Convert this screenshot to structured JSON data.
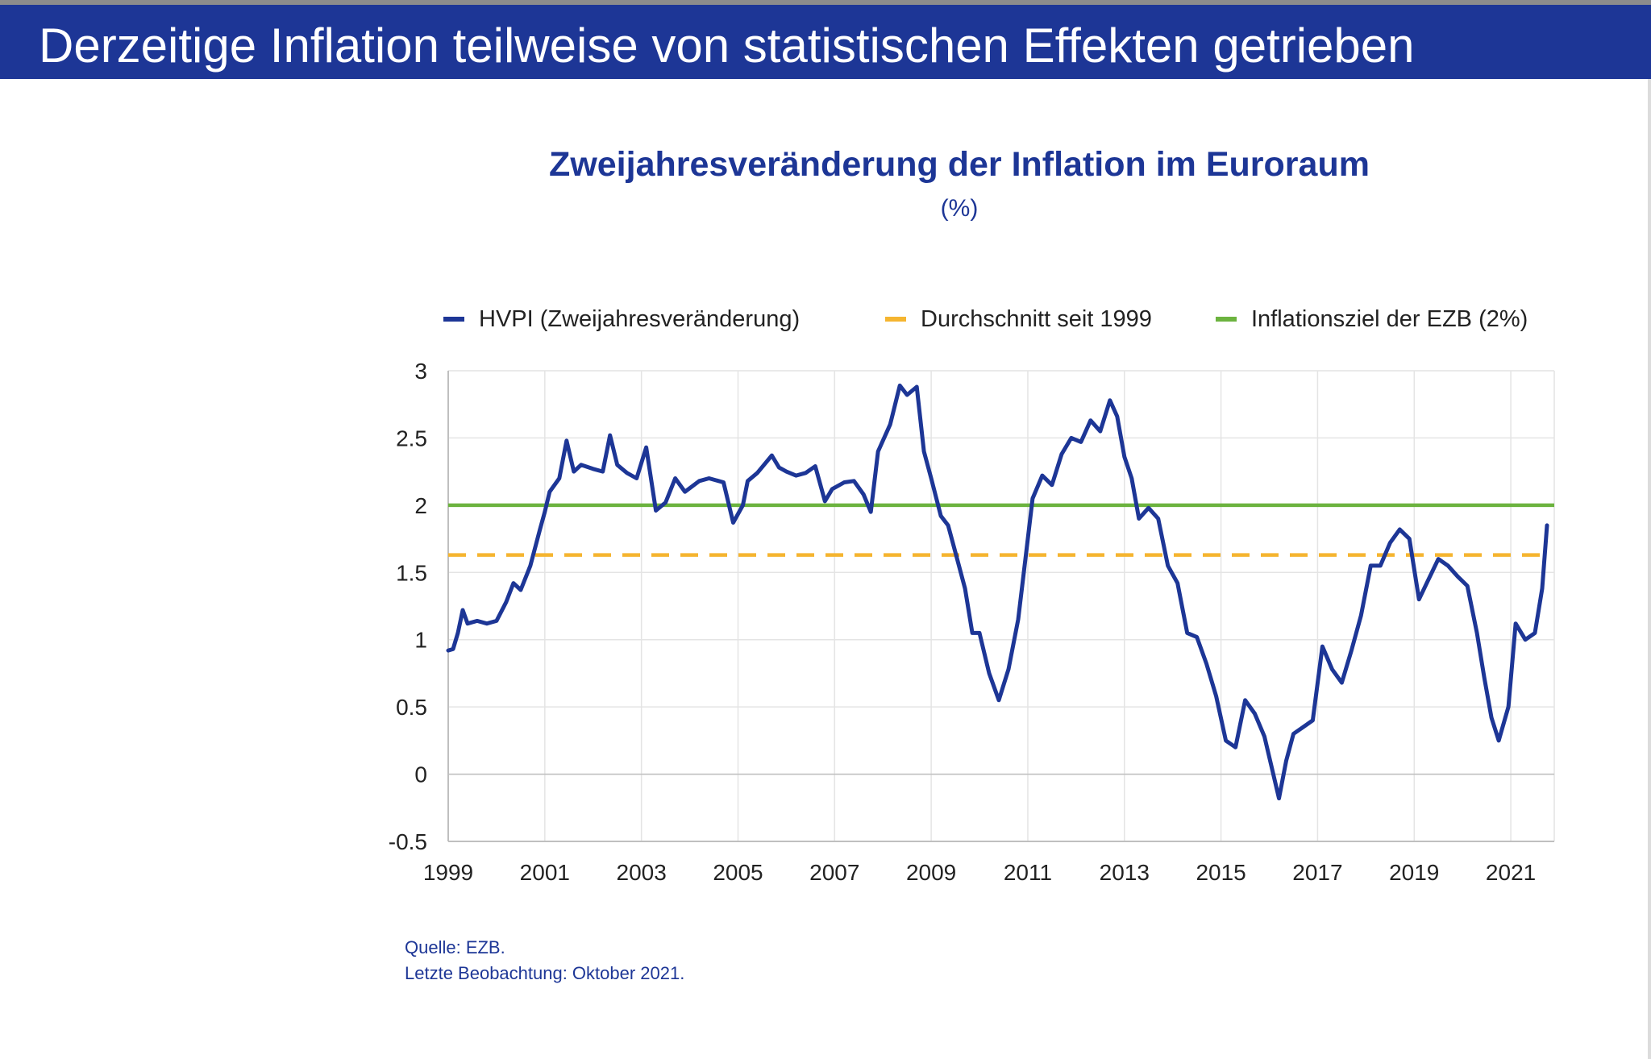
{
  "slide": {
    "title": "Derzeitige Inflation teilweise von statistischen Effekten getrieben"
  },
  "colors": {
    "banner": "#1d3696",
    "hvpi": "#1d3696",
    "average": "#f5b530",
    "target": "#6cb33f"
  },
  "source": {
    "line1": "Quelle: EZB.",
    "line2": "Letzte Beobachtung: Oktober 2021."
  },
  "chart_data": {
    "type": "line",
    "title": "Zweijahresveränderung der Inflation im Euroraum",
    "subtitle": "(%)",
    "xlabel": "",
    "ylabel": "",
    "ylim": [
      -0.5,
      3
    ],
    "xlim": [
      1999,
      2021.9
    ],
    "y_ticks": [
      "3",
      "2.5",
      "2",
      "1.5",
      "1",
      "0.5",
      "0",
      "-0.5"
    ],
    "y_tick_values": [
      3,
      2.5,
      2,
      1.5,
      1,
      0.5,
      0,
      -0.5
    ],
    "x_ticks": [
      "1999",
      "2001",
      "2003",
      "2005",
      "2007",
      "2009",
      "2011",
      "2013",
      "2015",
      "2017",
      "2019",
      "2021"
    ],
    "x_tick_values": [
      1999,
      2001,
      2003,
      2005,
      2007,
      2009,
      2011,
      2013,
      2015,
      2017,
      2019,
      2021
    ],
    "grid": true,
    "legend_position": "top",
    "series": [
      {
        "name": "HVPI (Zweijahresveränderung)",
        "style": "solid",
        "x": [
          1999.0,
          1999.1,
          1999.2,
          1999.3,
          1999.4,
          1999.6,
          1999.8,
          2000.0,
          2000.2,
          2000.35,
          2000.5,
          2000.7,
          2000.9,
          2001.0,
          2001.1,
          2001.3,
          2001.45,
          2001.6,
          2001.75,
          2002.0,
          2002.2,
          2002.35,
          2002.5,
          2002.7,
          2002.9,
          2003.1,
          2003.3,
          2003.5,
          2003.7,
          2003.9,
          2004.2,
          2004.4,
          2004.7,
          2004.9,
          2005.1,
          2005.2,
          2005.4,
          2005.7,
          2005.85,
          2006.0,
          2006.2,
          2006.4,
          2006.6,
          2006.8,
          2006.95,
          2007.2,
          2007.4,
          2007.6,
          2007.75,
          2007.9,
          2008.15,
          2008.35,
          2008.5,
          2008.7,
          2008.85,
          2009.0,
          2009.2,
          2009.35,
          2009.5,
          2009.7,
          2009.85,
          2010.0,
          2010.2,
          2010.4,
          2010.6,
          2010.8,
          2010.95,
          2011.1,
          2011.3,
          2011.5,
          2011.7,
          2011.9,
          2012.1,
          2012.3,
          2012.5,
          2012.7,
          2012.85,
          2013.0,
          2013.15,
          2013.3,
          2013.5,
          2013.7,
          2013.9,
          2014.1,
          2014.3,
          2014.5,
          2014.7,
          2014.9,
          2015.1,
          2015.3,
          2015.5,
          2015.7,
          2015.9,
          2016.05,
          2016.2,
          2016.35,
          2016.5,
          2016.7,
          2016.9,
          2017.1,
          2017.3,
          2017.5,
          2017.7,
          2017.9,
          2018.1,
          2018.3,
          2018.5,
          2018.7,
          2018.9,
          2019.1,
          2019.3,
          2019.5,
          2019.7,
          2019.9,
          2020.1,
          2020.3,
          2020.45,
          2020.6,
          2020.75,
          2020.95,
          2021.1,
          2021.3,
          2021.5,
          2021.65,
          2021.75
        ],
        "values": [
          0.92,
          0.93,
          1.05,
          1.22,
          1.12,
          1.14,
          1.12,
          1.14,
          1.28,
          1.42,
          1.37,
          1.55,
          1.82,
          1.95,
          2.1,
          2.2,
          2.48,
          2.25,
          2.3,
          2.27,
          2.25,
          2.52,
          2.3,
          2.24,
          2.2,
          2.43,
          1.96,
          2.02,
          2.2,
          2.1,
          2.18,
          2.2,
          2.17,
          1.87,
          2.0,
          2.18,
          2.24,
          2.37,
          2.28,
          2.25,
          2.22,
          2.24,
          2.29,
          2.03,
          2.12,
          2.17,
          2.18,
          2.08,
          1.95,
          2.4,
          2.6,
          2.89,
          2.82,
          2.88,
          2.4,
          2.2,
          1.92,
          1.85,
          1.65,
          1.38,
          1.05,
          1.05,
          0.75,
          0.55,
          0.78,
          1.15,
          1.6,
          2.05,
          2.22,
          2.15,
          2.38,
          2.5,
          2.47,
          2.63,
          2.55,
          2.78,
          2.66,
          2.36,
          2.2,
          1.9,
          1.98,
          1.9,
          1.55,
          1.42,
          1.05,
          1.02,
          0.82,
          0.58,
          0.25,
          0.2,
          0.55,
          0.45,
          0.28,
          0.05,
          -0.18,
          0.1,
          0.3,
          0.35,
          0.4,
          0.95,
          0.78,
          0.68,
          0.92,
          1.18,
          1.55,
          1.55,
          1.72,
          1.82,
          1.75,
          1.3,
          1.45,
          1.6,
          1.55,
          1.47,
          1.4,
          1.05,
          0.72,
          0.42,
          0.25,
          0.5,
          1.12,
          1.0,
          1.05,
          1.38,
          1.85
        ]
      },
      {
        "name": "Durchschnitt seit 1999",
        "style": "dashed",
        "x": [
          1999.0,
          2021.75
        ],
        "values": [
          1.63,
          1.63
        ]
      },
      {
        "name": "Inflationsziel der EZB (2%)",
        "style": "solid",
        "x": [
          1999.0,
          2021.9
        ],
        "values": [
          2.0,
          2.0
        ]
      }
    ]
  }
}
